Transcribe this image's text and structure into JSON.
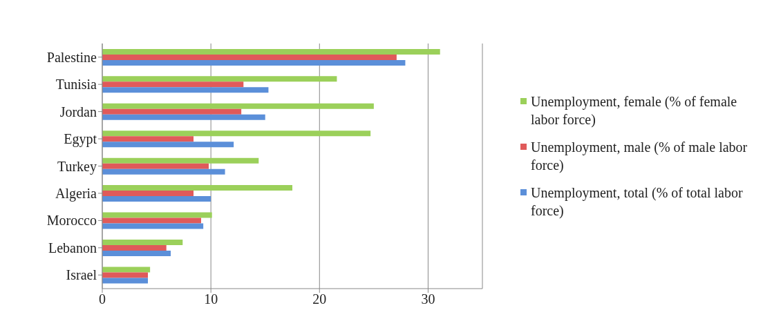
{
  "chart_data": {
    "type": "bar",
    "orientation": "horizontal",
    "categories": [
      "Palestine",
      "Tunisia",
      "Jordan",
      "Egypt",
      "Turkey",
      "Algeria",
      "Morocco",
      "Lebanon",
      "Israel"
    ],
    "series": [
      {
        "name": "Unemployment, female (% of female labor force)",
        "color": "#9bd05a",
        "values": [
          31.1,
          21.6,
          25.0,
          24.7,
          14.4,
          17.5,
          10.1,
          7.4,
          4.4
        ]
      },
      {
        "name": "Unemployment, male (% of male labor force)",
        "color": "#e05a5a",
        "values": [
          27.1,
          13.0,
          12.8,
          8.4,
          9.8,
          8.4,
          9.1,
          5.9,
          4.2
        ]
      },
      {
        "name": "Unemployment, total (% of total labor force)",
        "color": "#5b8fd9",
        "values": [
          27.9,
          15.3,
          15.0,
          12.1,
          11.3,
          10.0,
          9.3,
          6.3,
          4.2
        ]
      }
    ],
    "xlim": [
      0,
      35
    ],
    "xticks": [
      0,
      10,
      20,
      30
    ],
    "grid": "x",
    "legend": "right"
  }
}
